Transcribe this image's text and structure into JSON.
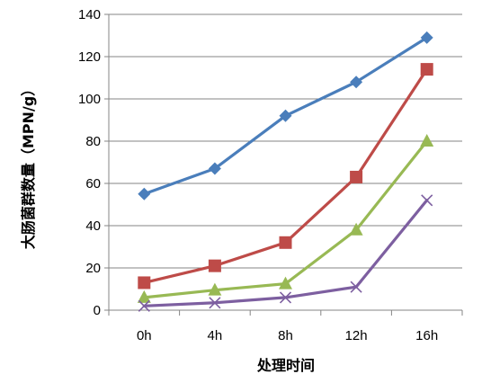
{
  "chart_data": {
    "type": "line",
    "title": "",
    "xlabel": "处理时间",
    "ylabel": "大肠菌群数量（MPN/g）",
    "categories": [
      "0h",
      "4h",
      "8h",
      "12h",
      "16h"
    ],
    "ylim": [
      0,
      140
    ],
    "yticks": [
      0,
      20,
      40,
      60,
      80,
      100,
      120,
      140
    ],
    "grid": "horizontal",
    "legend": "none",
    "series": [
      {
        "color": "#4a7ebb",
        "marker": "diamond",
        "values": [
          55,
          67,
          92,
          108,
          129
        ]
      },
      {
        "color": "#be4b48",
        "marker": "square",
        "values": [
          13,
          21,
          32,
          63,
          114
        ]
      },
      {
        "color": "#98b954",
        "marker": "triangle",
        "values": [
          6,
          9.5,
          12.5,
          38,
          80
        ]
      },
      {
        "color": "#7d5fa0",
        "marker": "x",
        "values": [
          2,
          3.5,
          6,
          11,
          52
        ]
      }
    ]
  }
}
